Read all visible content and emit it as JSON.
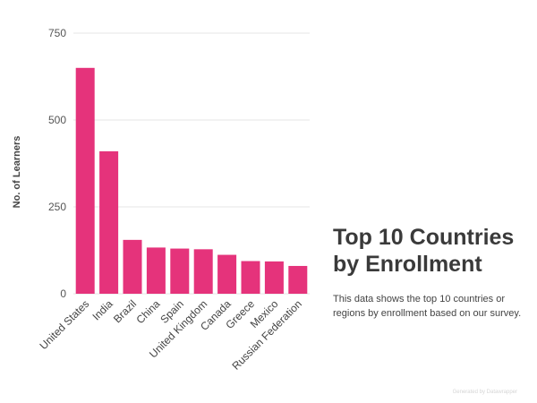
{
  "panel": {
    "title_line1": "Top 10 Countries",
    "title_line2": "by Enrollment",
    "description": "This data shows the top 10 countries or regions by enrollment based on our survey."
  },
  "watermark": "Generated by Datawrapper",
  "chart_data": {
    "type": "bar",
    "title": "Top 10 Countries by Enrollment",
    "xlabel": "",
    "ylabel": "No. of Learners",
    "categories": [
      "United States",
      "India",
      "Brazil",
      "China",
      "Spain",
      "United Kingdom",
      "Canada",
      "Greece",
      "Mexico",
      "Russian Federation"
    ],
    "values": [
      650,
      410,
      155,
      133,
      130,
      128,
      112,
      94,
      93,
      80
    ],
    "ylim": [
      0,
      750
    ],
    "yticks": [
      0,
      250,
      500,
      750
    ],
    "grid": true,
    "color": "#e5337b"
  }
}
